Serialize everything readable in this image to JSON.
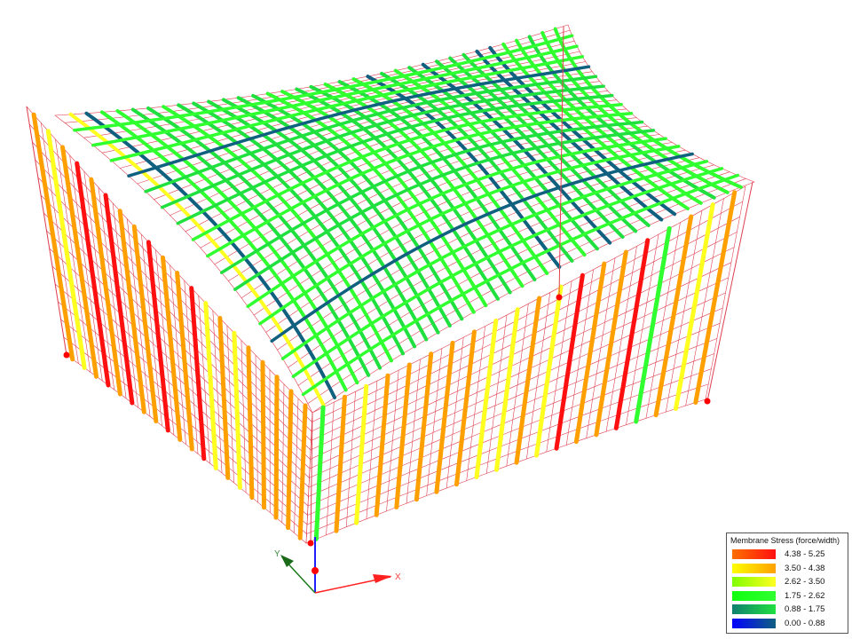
{
  "axes": {
    "x_label": "X",
    "y_label": "Y",
    "x_color": "#ff2020",
    "y_color": "#1a7a1a",
    "z_color": "#2020ff"
  },
  "mesh_color": "#e04050",
  "support_color": "#ff0000",
  "legend": {
    "title": "Membrane Stress (force/width)",
    "items": [
      {
        "label": "4.38 - 5.25",
        "from": "#ff7000",
        "to": "#ff1010"
      },
      {
        "label": "3.50 - 4.38",
        "from": "#ffff00",
        "to": "#ffa000"
      },
      {
        "label": "2.62 - 3.50",
        "from": "#80ff00",
        "to": "#ffff20"
      },
      {
        "label": "1.75 - 2.62",
        "from": "#10ff10",
        "to": "#30ff30"
      },
      {
        "label": "0.88 - 1.75",
        "from": "#108070",
        "to": "#20e040"
      },
      {
        "label": "0.00 - 0.88",
        "from": "#0000ff",
        "to": "#106080"
      }
    ]
  }
}
